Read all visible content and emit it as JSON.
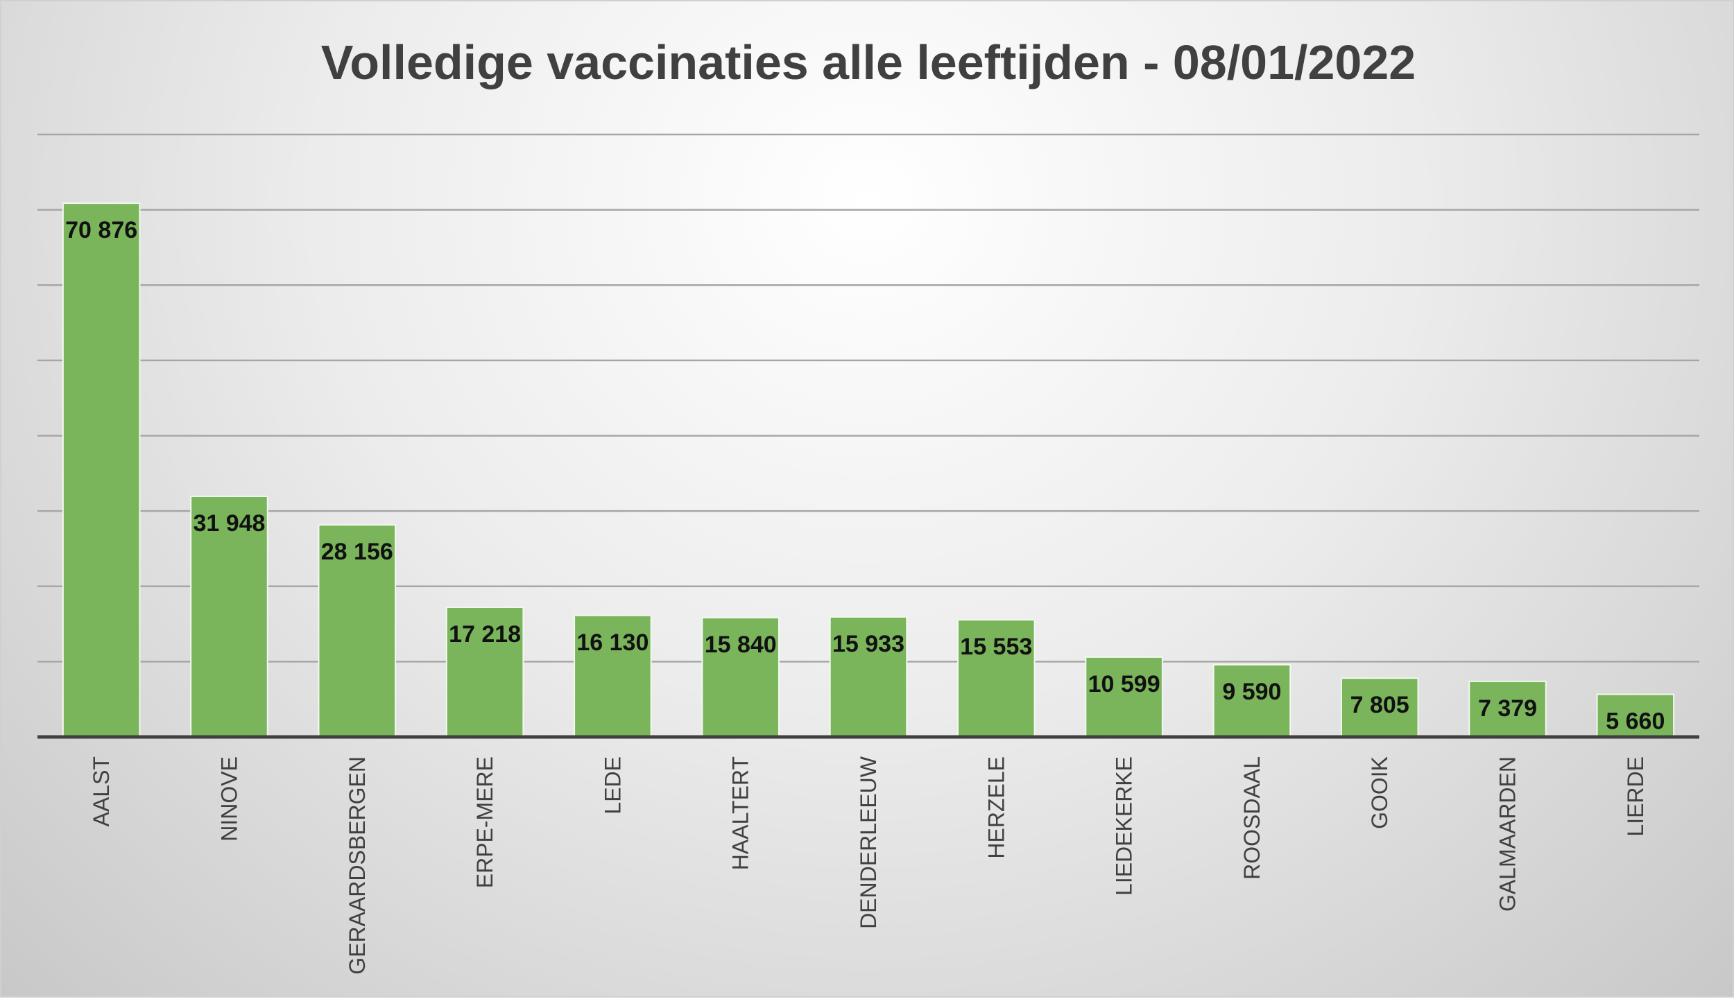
{
  "chart_data": {
    "type": "bar",
    "title": "Volledige vaccinaties alle leeftijden - 08/01/2022",
    "xlabel": "",
    "ylabel": "",
    "ylim": [
      0,
      80000
    ],
    "y_grid_step": 10000,
    "grid": true,
    "y_tick_labels_shown": false,
    "categories": [
      "AALST",
      "NINOVE",
      "GERAARDSBERGEN",
      "ERPE-MERE",
      "LEDE",
      "HAALTERT",
      "DENDERLEEUW",
      "HERZELE",
      "LIEDEKERKE",
      "ROOSDAAL",
      "GOOIK",
      "GALMAARDEN",
      "LIERDE"
    ],
    "values": [
      70876,
      31948,
      28156,
      17218,
      16130,
      15840,
      15933,
      15553,
      10599,
      9590,
      7805,
      7379,
      5660
    ],
    "value_labels": [
      "70 876",
      "31 948",
      "28 156",
      "17 218",
      "16 130",
      "15 840",
      "15 933",
      "15 553",
      "10 599",
      "9 590",
      "7 805",
      "7 379",
      "5 660"
    ],
    "colors": {
      "bar": "#7ab55c",
      "bar_edge": "#f2f8ee",
      "grid": "#a6a6a6",
      "axis": "#404040"
    }
  }
}
